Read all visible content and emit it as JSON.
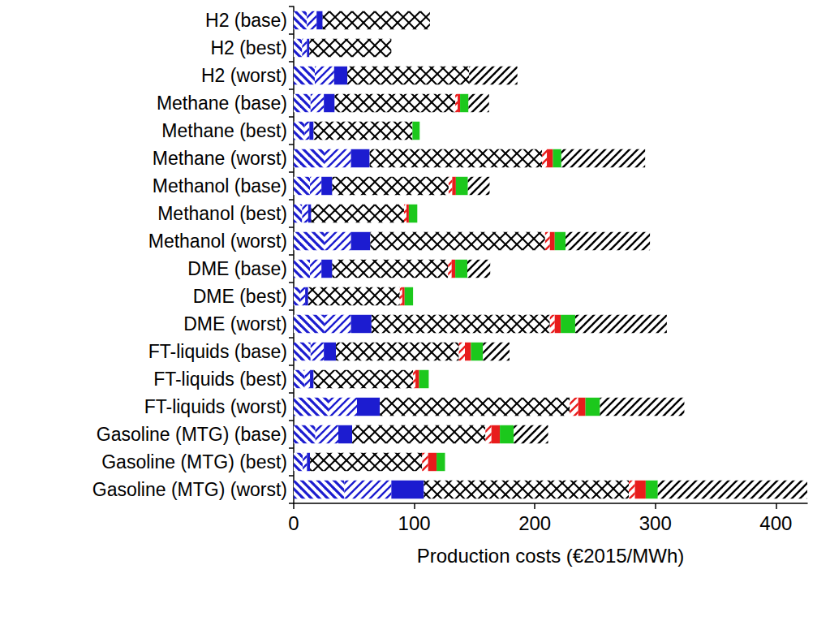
{
  "chart_data": {
    "type": "bar",
    "orientation": "horizontal",
    "stacked": true,
    "grid": false,
    "xlabel": "Production costs (€2015/MWh)",
    "categories": [
      "H2 (base)",
      "H2 (best)",
      "H2 (worst)",
      "Methane (base)",
      "Methane (best)",
      "Methane (worst)",
      "Methanol (base)",
      "Methanol (best)",
      "Methanol (worst)",
      "DME (base)",
      "DME (best)",
      "DME (worst)",
      "FT-liquids (base)",
      "FT-liquids (best)",
      "FT-liquids (worst)",
      "Gasoline (MTG) (base)",
      "Gasoline (MTG) (best)",
      "Gasoline (MTG) (worst)"
    ],
    "xlim": [
      0,
      426
    ],
    "xticks": [
      0,
      100,
      200,
      300,
      400
    ],
    "series": [
      {
        "color": "#1c1cd0",
        "values": [
          11,
          7,
          17.5,
          14,
          9,
          25.5,
          13.5,
          7,
          25.5,
          13.5,
          5.5,
          25.5,
          14,
          9,
          29,
          18,
          7.5,
          42
        ]
      },
      {
        "color": "#1c1cd0",
        "values": [
          8,
          4,
          16,
          11,
          4,
          22,
          9.5,
          5,
          22,
          9.5,
          4,
          22,
          11,
          4.5,
          23.5,
          19,
          3.5,
          39
        ]
      },
      {
        "color": "#1c1cd0",
        "values": [
          5,
          2,
          11,
          9,
          3.5,
          15.5,
          9,
          2.5,
          16,
          9,
          2.5,
          17,
          10,
          3,
          19,
          11.5,
          2.5,
          27
        ]
      },
      {
        "color": "#000000",
        "values": [
          89,
          68,
          101,
          100,
          82,
          143,
          96.5,
          77,
          145,
          96,
          76,
          148,
          102,
          82.5,
          157.5,
          110.5,
          93,
          170
        ]
      },
      {
        "color": "#e81c1c",
        "values": [
          0,
          0,
          0,
          2,
          0,
          4,
          3,
          2,
          4,
          3,
          2,
          4,
          5,
          2,
          7,
          5,
          5,
          5
        ]
      },
      {
        "color": "#e81c1c",
        "values": [
          0,
          0,
          0,
          2,
          0,
          5,
          3,
          2,
          4,
          3,
          2,
          5,
          5,
          3,
          6,
          7,
          7,
          9
        ]
      },
      {
        "color": "#1cc81c",
        "values": [
          0,
          0,
          0,
          7,
          6,
          7,
          10,
          7,
          9,
          10,
          7,
          12,
          10,
          8,
          12,
          11.5,
          7,
          10
        ]
      },
      {
        "color": "#000000",
        "values": [
          0,
          0,
          40,
          17,
          0,
          69.5,
          18,
          0,
          70,
          19,
          0,
          76,
          22,
          0,
          70,
          28.5,
          0,
          124
        ]
      }
    ]
  }
}
